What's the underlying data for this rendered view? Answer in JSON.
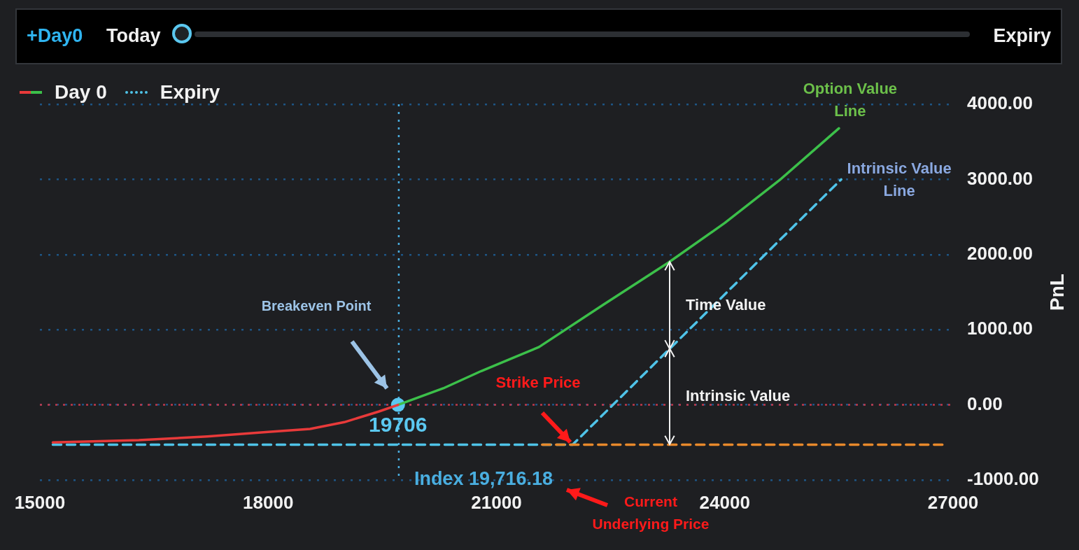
{
  "chart_data": {
    "type": "line",
    "ylabel": "PnL",
    "xlim": [
      15000,
      27000
    ],
    "xticks": [
      15000,
      18000,
      21000,
      24000,
      27000
    ],
    "ylim": [
      -1000,
      4000
    ],
    "yticks": [
      {
        "value": -1000,
        "label": "-1000.00"
      },
      {
        "value": 0,
        "label": "0.00"
      },
      {
        "value": 1000,
        "label": "1000.00"
      },
      {
        "value": 2000,
        "label": "2000.00"
      },
      {
        "value": 3000,
        "label": "3000.00"
      },
      {
        "value": 4000,
        "label": "4000.00"
      }
    ],
    "grid": "y",
    "legend": "top left",
    "series": [
      {
        "name": "Day 0",
        "color": "#e83a3a",
        "x": [
          15170,
          16300,
          17200,
          18000,
          18550,
          19000,
          19450,
          19706
        ],
        "values": [
          -500,
          -470,
          -420,
          -360,
          -320,
          -230,
          -90,
          0
        ]
      },
      {
        "color": "#3cc04a",
        "x": [
          19706,
          20300,
          20800,
          21560,
          22400,
          23270,
          24000,
          24720,
          25500
        ],
        "values": [
          0,
          220,
          450,
          770,
          1330,
          1900,
          2420,
          2990,
          3680
        ]
      },
      {
        "color": "#e8892b",
        "line_style": "dashed",
        "x": [
          21600,
          26870
        ],
        "values": [
          -530,
          -530
        ]
      },
      {
        "name": "Expiry",
        "color": "#4fc3e8",
        "line_style": "dashed",
        "x": [
          15170,
          22000,
          25530
        ],
        "values": [
          -530,
          -530,
          3000
        ]
      },
      {
        "type": "scatter",
        "color": "#5bc8f0",
        "x": [
          19706
        ],
        "values": [
          0
        ]
      }
    ],
    "ref_lines": [
      {
        "axis": "y",
        "value": 0,
        "color": "#c0394b",
        "line_style": "dotted"
      },
      {
        "axis": "x",
        "value": 19716.18,
        "label": "Index 19,716.18",
        "color": "#4aaee0",
        "line_style": "dotted"
      }
    ],
    "annotations": [
      "+Day0",
      "Today",
      "Expiry",
      "Breakeven Point",
      "Strike Price",
      "Time Value",
      "Intrinsic Value",
      "Current Underlying Price",
      {
        "text": "19706",
        "x": 19706,
        "y": 0
      },
      {
        "text": "Option Value Line",
        "x": 25500,
        "y": 3680
      },
      {
        "text": "Intrinsic Value Line",
        "x": 25530,
        "y": 3000
      }
    ]
  }
}
